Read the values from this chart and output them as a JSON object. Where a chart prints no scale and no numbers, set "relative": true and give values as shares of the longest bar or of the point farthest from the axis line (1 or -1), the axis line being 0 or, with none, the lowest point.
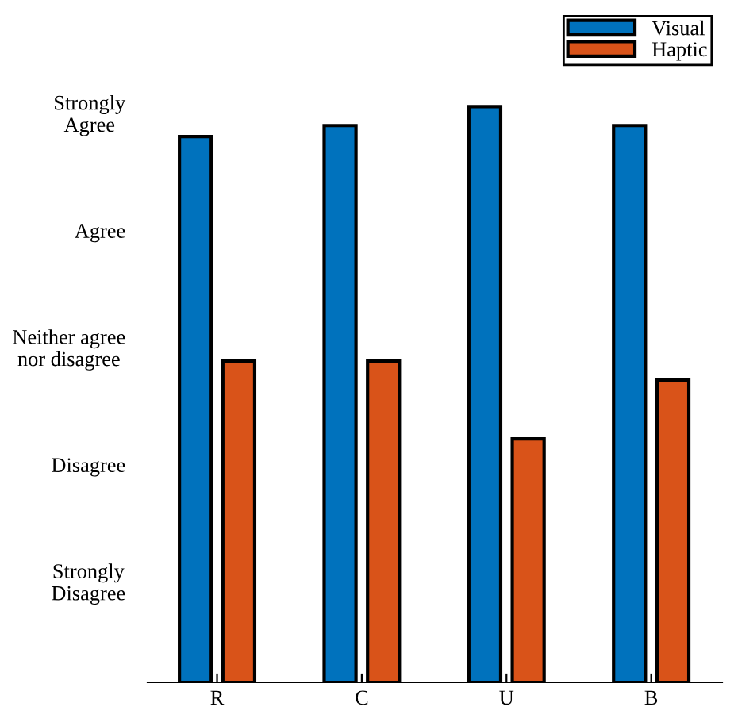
{
  "chart_data": {
    "type": "bar",
    "categories": [
      "R",
      "C",
      "U",
      "B"
    ],
    "relative": true,
    "series": [
      {
        "name": "Visual",
        "color": "#0072bd",
        "values": [
          0.948,
          0.967,
          1,
          0.967
        ]
      },
      {
        "name": "Haptic",
        "color": "#d95319",
        "values": [
          0.558,
          0.558,
          0.423,
          0.525
        ]
      }
    ],
    "annotations": [
      "Strongly\nDisagree",
      "Disagree",
      "Neither agree\nnor disagree",
      "Agree",
      "Strongly\nAgree"
    ],
    "grid": false,
    "legend": "top right"
  }
}
